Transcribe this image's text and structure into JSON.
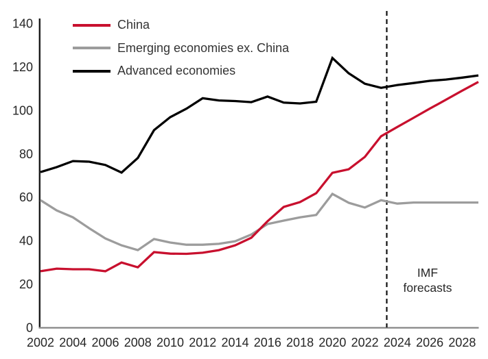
{
  "figure": {
    "background": "#ffffff",
    "text_color": "#262626",
    "y_axis_color": "#1a1a1a",
    "x_axis_color": "#8c8c8c",
    "divider_color": "#111111"
  },
  "chart_data": {
    "type": "line",
    "title": "",
    "xlabel": "",
    "ylabel": "",
    "grid": false,
    "legend_position": "top-left",
    "xlim": [
      2002,
      2029
    ],
    "ylim": [
      0,
      140
    ],
    "yticks": [
      0,
      20,
      40,
      60,
      80,
      100,
      120,
      140
    ],
    "xticks": [
      2002,
      2004,
      2006,
      2008,
      2010,
      2012,
      2014,
      2016,
      2018,
      2020,
      2022,
      2024,
      2026,
      2028
    ],
    "x": [
      2002,
      2003,
      2004,
      2005,
      2006,
      2007,
      2008,
      2009,
      2010,
      2011,
      2012,
      2013,
      2014,
      2015,
      2016,
      2017,
      2018,
      2019,
      2020,
      2021,
      2022,
      2023,
      2024,
      2025,
      2026,
      2027,
      2028,
      2029
    ],
    "series": [
      {
        "name": "China",
        "color": "#c8102e",
        "values": [
          25.9,
          27.1,
          26.8,
          26.8,
          25.9,
          29.9,
          27.7,
          34.7,
          34.0,
          33.9,
          34.4,
          35.6,
          37.8,
          41.3,
          48.9,
          55.5,
          57.7,
          61.8,
          71.2,
          72.8,
          78.5,
          88.0,
          92.3,
          96.5,
          100.7,
          104.8,
          109.0,
          113.0
        ]
      },
      {
        "name": "Emerging economies ex. China",
        "color": "#9c9c9c",
        "values": [
          58.6,
          53.9,
          50.7,
          45.7,
          41.0,
          37.8,
          35.6,
          40.7,
          39.1,
          38.1,
          38.1,
          38.5,
          39.7,
          42.8,
          47.6,
          49.2,
          50.7,
          51.8,
          61.5,
          57.4,
          55.2,
          58.6,
          57.0,
          57.5,
          57.5,
          57.5,
          57.5,
          57.5
        ]
      },
      {
        "name": "Advanced economies",
        "color": "#000000",
        "values": [
          71.5,
          73.8,
          76.6,
          76.3,
          74.8,
          71.3,
          78.0,
          90.8,
          96.8,
          100.7,
          105.5,
          104.5,
          104.2,
          103.7,
          106.3,
          103.5,
          103.1,
          103.9,
          124.0,
          117.0,
          112.2,
          110.3,
          111.6,
          112.5,
          113.5,
          114.1,
          115.0,
          116.0
        ]
      }
    ],
    "forecast_divider": {
      "x": 2023.35,
      "style": "dashed"
    },
    "annotation": {
      "line1": "IMF",
      "line2": "forecasts"
    }
  }
}
